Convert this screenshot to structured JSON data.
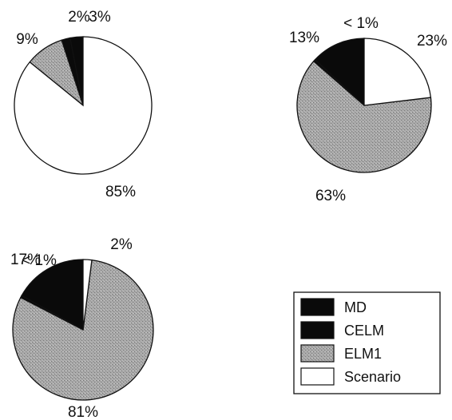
{
  "chart_data": [
    {
      "type": "pie",
      "slices": [
        {
          "category": "MD",
          "value": 3,
          "label": "3%"
        },
        {
          "category": "CELM",
          "value": 2,
          "label": "2%"
        },
        {
          "category": "ELM1",
          "value": 9,
          "label": "9%"
        },
        {
          "category": "Scenario",
          "value": 85,
          "label": "85%"
        }
      ]
    },
    {
      "type": "pie",
      "slices": [
        {
          "category": "MD",
          "value": 13,
          "label": "13%"
        },
        {
          "category": "CELM",
          "value": 0.5,
          "label": "< 1%"
        },
        {
          "category": "ELM1",
          "value": 63,
          "label": "63%"
        },
        {
          "category": "Scenario",
          "value": 23,
          "label": "23%"
        }
      ]
    },
    {
      "type": "pie",
      "slices": [
        {
          "category": "MD",
          "value": 17,
          "label": "17%"
        },
        {
          "category": "CELM",
          "value": 0.5,
          "label": "< 1%"
        },
        {
          "category": "ELM1",
          "value": 81,
          "label": "81%"
        },
        {
          "category": "Scenario",
          "value": 2,
          "label": "2%"
        }
      ]
    }
  ],
  "legend": {
    "placement": "bottom-right",
    "items": [
      {
        "category": "MD",
        "label": "MD",
        "color": "#0a0a0a"
      },
      {
        "category": "CELM",
        "label": "CELM",
        "color": "#0a0a0a"
      },
      {
        "category": "ELM1",
        "label": "ELM1",
        "color": "#9a9a9a"
      },
      {
        "category": "Scenario",
        "label": "Scenario",
        "color": "#ffffff"
      }
    ]
  }
}
